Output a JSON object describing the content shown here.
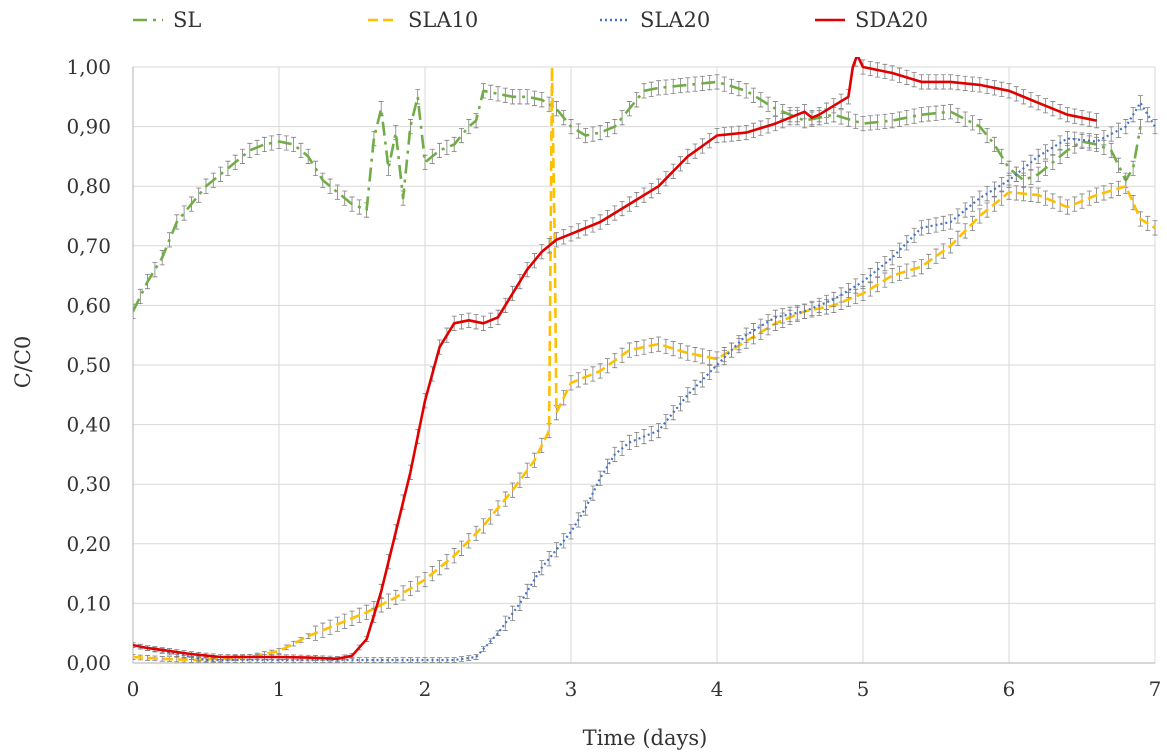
{
  "chart_data": {
    "type": "line",
    "xlabel": "Time  (days)",
    "ylabel": "C/C0",
    "xlim": [
      0,
      7
    ],
    "ylim": [
      0,
      1
    ],
    "x_ticks": [
      "0",
      "1",
      "2",
      "3",
      "4",
      "5",
      "6",
      "7"
    ],
    "y_ticks": [
      "0,00",
      "0,10",
      "0,20",
      "0,30",
      "0,40",
      "0,50",
      "0,60",
      "0,70",
      "0,80",
      "0,90",
      "1,00"
    ],
    "grid": true,
    "legend_position": "top",
    "error_bars": true,
    "series": [
      {
        "name": "SL",
        "color": "#70AD47",
        "dash": "dash-dot",
        "x": [
          0,
          0.1,
          0.2,
          0.3,
          0.4,
          0.5,
          0.6,
          0.7,
          0.8,
          0.9,
          1.0,
          1.1,
          1.2,
          1.3,
          1.4,
          1.5,
          1.6,
          1.65,
          1.7,
          1.75,
          1.8,
          1.85,
          1.9,
          1.95,
          2.0,
          2.1,
          2.2,
          2.3,
          2.35,
          2.4,
          2.5,
          2.6,
          2.7,
          2.8,
          2.9,
          3.0,
          3.1,
          3.2,
          3.3,
          3.4,
          3.5,
          3.6,
          3.8,
          4.0,
          4.2,
          4.4,
          4.6,
          4.8,
          5.0,
          5.2,
          5.4,
          5.6,
          5.8,
          5.9,
          6.0,
          6.1,
          6.2,
          6.3,
          6.4,
          6.5,
          6.6,
          6.7,
          6.8,
          6.85,
          6.9
        ],
        "y": [
          0.59,
          0.64,
          0.68,
          0.74,
          0.77,
          0.8,
          0.82,
          0.84,
          0.86,
          0.87,
          0.875,
          0.87,
          0.85,
          0.81,
          0.79,
          0.77,
          0.76,
          0.88,
          0.93,
          0.83,
          0.89,
          0.78,
          0.9,
          0.95,
          0.84,
          0.86,
          0.87,
          0.9,
          0.91,
          0.96,
          0.955,
          0.95,
          0.95,
          0.945,
          0.93,
          0.9,
          0.885,
          0.89,
          0.9,
          0.93,
          0.96,
          0.965,
          0.97,
          0.975,
          0.96,
          0.93,
          0.91,
          0.92,
          0.905,
          0.91,
          0.92,
          0.925,
          0.9,
          0.87,
          0.83,
          0.81,
          0.82,
          0.84,
          0.86,
          0.875,
          0.87,
          0.86,
          0.81,
          0.83,
          0.9
        ]
      },
      {
        "name": "SLA10",
        "color": "#FFC000",
        "dash": "dash",
        "x": [
          0,
          0.2,
          0.4,
          0.6,
          0.8,
          1.0,
          1.2,
          1.4,
          1.6,
          1.8,
          2.0,
          2.2,
          2.4,
          2.6,
          2.75,
          2.85,
          2.87,
          2.89,
          2.9,
          3.0,
          3.2,
          3.4,
          3.6,
          3.8,
          4.0,
          4.2,
          4.4,
          4.6,
          4.8,
          5.0,
          5.2,
          5.4,
          5.6,
          5.8,
          6.0,
          6.2,
          6.4,
          6.6,
          6.8,
          6.9,
          7.0
        ],
        "y": [
          0.01,
          0.007,
          0.005,
          0.007,
          0.01,
          0.02,
          0.045,
          0.065,
          0.085,
          0.11,
          0.14,
          0.18,
          0.23,
          0.29,
          0.34,
          0.39,
          1.0,
          0.68,
          0.42,
          0.47,
          0.49,
          0.525,
          0.535,
          0.52,
          0.51,
          0.54,
          0.57,
          0.59,
          0.6,
          0.62,
          0.65,
          0.665,
          0.7,
          0.75,
          0.79,
          0.785,
          0.765,
          0.785,
          0.8,
          0.745,
          0.73
        ]
      },
      {
        "name": "SLA20",
        "color": "#4472C4",
        "dash": "dot",
        "x": [
          0,
          0.5,
          1.0,
          1.5,
          2.0,
          2.2,
          2.35,
          2.5,
          2.65,
          2.8,
          2.9,
          3.0,
          3.1,
          3.2,
          3.3,
          3.4,
          3.5,
          3.6,
          3.8,
          4.0,
          4.2,
          4.4,
          4.6,
          4.8,
          5.0,
          5.2,
          5.4,
          5.6,
          5.8,
          6.0,
          6.2,
          6.4,
          6.6,
          6.8,
          6.9,
          7.0
        ],
        "y": [
          0.03,
          0.005,
          0.005,
          0.005,
          0.005,
          0.005,
          0.01,
          0.05,
          0.1,
          0.16,
          0.19,
          0.22,
          0.26,
          0.31,
          0.35,
          0.37,
          0.38,
          0.39,
          0.45,
          0.5,
          0.55,
          0.58,
          0.59,
          0.61,
          0.64,
          0.68,
          0.73,
          0.74,
          0.78,
          0.81,
          0.85,
          0.88,
          0.875,
          0.9,
          0.94,
          0.9
        ]
      },
      {
        "name": "SDA20",
        "color": "#E00000",
        "dash": "solid",
        "x": [
          0,
          0.1,
          0.2,
          0.4,
          0.6,
          0.8,
          1.0,
          1.2,
          1.4,
          1.5,
          1.6,
          1.7,
          1.8,
          1.9,
          2.0,
          2.1,
          2.2,
          2.3,
          2.4,
          2.5,
          2.6,
          2.7,
          2.8,
          2.9,
          3.0,
          3.2,
          3.4,
          3.6,
          3.8,
          4.0,
          4.2,
          4.4,
          4.6,
          4.65,
          4.7,
          4.8,
          4.9,
          4.93,
          4.96,
          5.0,
          5.2,
          5.4,
          5.6,
          5.8,
          6.0,
          6.2,
          6.4,
          6.6
        ],
        "y": [
          0.03,
          0.025,
          0.022,
          0.015,
          0.01,
          0.01,
          0.01,
          0.009,
          0.007,
          0.012,
          0.04,
          0.12,
          0.22,
          0.32,
          0.44,
          0.53,
          0.57,
          0.575,
          0.57,
          0.58,
          0.62,
          0.66,
          0.69,
          0.71,
          0.72,
          0.74,
          0.77,
          0.8,
          0.85,
          0.885,
          0.89,
          0.905,
          0.925,
          0.915,
          0.92,
          0.935,
          0.95,
          1.0,
          1.02,
          1.0,
          0.99,
          0.975,
          0.975,
          0.97,
          0.96,
          0.94,
          0.92,
          0.91
        ]
      }
    ]
  }
}
